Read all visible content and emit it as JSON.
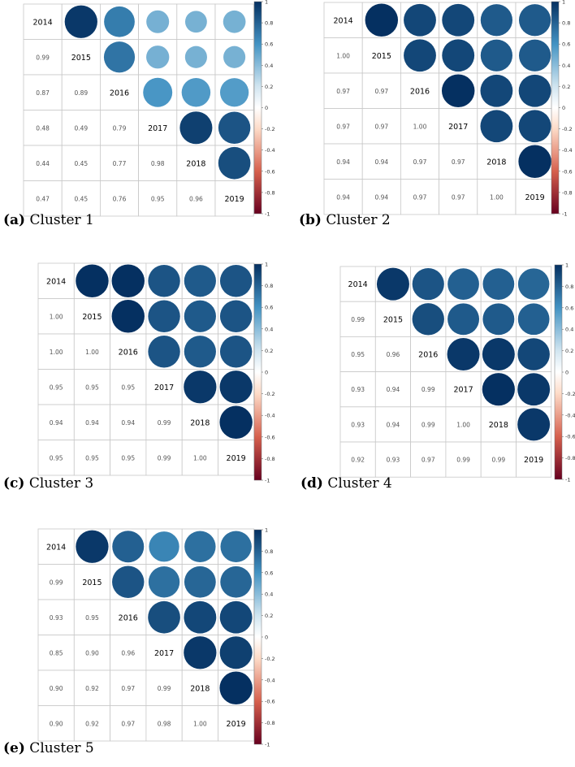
{
  "colorbar_ticks": [
    "1",
    "0.8",
    "0.6",
    "0.4",
    "0.2",
    "0",
    "-0.2",
    "-0.4",
    "-0.6",
    "-0.8",
    "-1"
  ],
  "chart_data": [
    {
      "type": "heatmap",
      "caption_label": "(a)",
      "caption_text": "Cluster 1",
      "labels": [
        "2014",
        "2015",
        "2016",
        "2017",
        "2018",
        "2019"
      ],
      "matrix": [
        [
          1.0,
          0.99,
          0.87,
          0.48,
          0.44,
          0.47
        ],
        [
          0.99,
          1.0,
          0.89,
          0.49,
          0.45,
          0.45
        ],
        [
          0.87,
          0.89,
          1.0,
          0.79,
          0.77,
          0.76
        ],
        [
          0.48,
          0.49,
          0.79,
          1.0,
          0.98,
          0.95
        ],
        [
          0.44,
          0.45,
          0.77,
          0.98,
          1.0,
          0.96
        ],
        [
          0.47,
          0.45,
          0.76,
          0.95,
          0.96,
          1.0
        ]
      ],
      "value_labels": [
        [
          "",
          "",
          "",
          "",
          "",
          ""
        ],
        [
          "0.99",
          "",
          "",
          "",
          "",
          ""
        ],
        [
          "0.87",
          "0.89",
          "",
          "",
          "",
          ""
        ],
        [
          "0.48",
          "0.49",
          "0.79",
          "",
          "",
          ""
        ],
        [
          "0.44",
          "0.45",
          "0.77",
          "0.98",
          "",
          ""
        ],
        [
          "0.47",
          "0.45",
          "0.76",
          "0.95",
          "0.96",
          ""
        ]
      ],
      "color_range": [
        -1,
        1
      ]
    },
    {
      "type": "heatmap",
      "caption_label": "(b)",
      "caption_text": "Cluster 2",
      "labels": [
        "2014",
        "2015",
        "2016",
        "2017",
        "2018",
        "2019"
      ],
      "matrix": [
        [
          1.0,
          1.0,
          0.97,
          0.97,
          0.94,
          0.94
        ],
        [
          1.0,
          1.0,
          0.97,
          0.97,
          0.94,
          0.94
        ],
        [
          0.97,
          0.97,
          1.0,
          1.0,
          0.97,
          0.97
        ],
        [
          0.97,
          0.97,
          1.0,
          1.0,
          0.97,
          0.97
        ],
        [
          0.94,
          0.94,
          0.97,
          0.97,
          1.0,
          1.0
        ],
        [
          0.94,
          0.94,
          0.97,
          0.97,
          1.0,
          1.0
        ]
      ],
      "value_labels": [
        [
          "",
          "",
          "",
          "",
          "",
          ""
        ],
        [
          "1.00",
          "",
          "",
          "",
          "",
          ""
        ],
        [
          "0.97",
          "0.97",
          "",
          "",
          "",
          ""
        ],
        [
          "0.97",
          "0.97",
          "1.00",
          "",
          "",
          ""
        ],
        [
          "0.94",
          "0.94",
          "0.97",
          "0.97",
          "",
          ""
        ],
        [
          "0.94",
          "0.94",
          "0.97",
          "0.97",
          "1.00",
          ""
        ]
      ],
      "color_range": [
        -1,
        1
      ]
    },
    {
      "type": "heatmap",
      "caption_label": "(c)",
      "caption_text": "Cluster 3",
      "labels": [
        "2014",
        "2015",
        "2016",
        "2017",
        "2018",
        "2019"
      ],
      "matrix": [
        [
          1.0,
          1.0,
          1.0,
          0.95,
          0.94,
          0.95
        ],
        [
          1.0,
          1.0,
          1.0,
          0.95,
          0.94,
          0.95
        ],
        [
          1.0,
          1.0,
          1.0,
          0.95,
          0.94,
          0.95
        ],
        [
          0.95,
          0.95,
          0.95,
          1.0,
          0.99,
          0.99
        ],
        [
          0.94,
          0.94,
          0.94,
          0.99,
          1.0,
          1.0
        ],
        [
          0.95,
          0.95,
          0.95,
          0.99,
          1.0,
          1.0
        ]
      ],
      "value_labels": [
        [
          "",
          "",
          "",
          "",
          "",
          ""
        ],
        [
          "1.00",
          "",
          "",
          "",
          "",
          ""
        ],
        [
          "1.00",
          "1.00",
          "",
          "",
          "",
          ""
        ],
        [
          "0.95",
          "0.95",
          "0.95",
          "",
          "",
          ""
        ],
        [
          "0.94",
          "0.94",
          "0.94",
          "0.99",
          "",
          ""
        ],
        [
          "0.95",
          "0.95",
          "0.95",
          "0.99",
          "1.00",
          ""
        ]
      ],
      "color_range": [
        -1,
        1
      ]
    },
    {
      "type": "heatmap",
      "caption_label": "(d)",
      "caption_text": "Cluster 4",
      "labels": [
        "2014",
        "2015",
        "2016",
        "2017",
        "2018",
        "2019"
      ],
      "matrix": [
        [
          1.0,
          0.99,
          0.95,
          0.93,
          0.93,
          0.92
        ],
        [
          0.99,
          1.0,
          0.96,
          0.94,
          0.94,
          0.93
        ],
        [
          0.95,
          0.96,
          1.0,
          0.99,
          0.99,
          0.97
        ],
        [
          0.93,
          0.94,
          0.99,
          1.0,
          1.0,
          0.99
        ],
        [
          0.93,
          0.94,
          0.99,
          1.0,
          1.0,
          0.99
        ],
        [
          0.92,
          0.93,
          0.97,
          0.99,
          0.99,
          1.0
        ]
      ],
      "value_labels": [
        [
          "",
          "",
          "",
          "",
          "",
          ""
        ],
        [
          "0.99",
          "",
          "",
          "",
          "",
          ""
        ],
        [
          "0.95",
          "0.96",
          "",
          "",
          "",
          ""
        ],
        [
          "0.93",
          "0.94",
          "0.99",
          "",
          "",
          ""
        ],
        [
          "0.93",
          "0.94",
          "0.99",
          "1.00",
          "",
          ""
        ],
        [
          "0.92",
          "0.93",
          "0.97",
          "0.99",
          "0.99",
          ""
        ]
      ],
      "color_range": [
        -1,
        1
      ]
    },
    {
      "type": "heatmap",
      "caption_label": "(e)",
      "caption_text": "Cluster 5",
      "labels": [
        "2014",
        "2015",
        "2016",
        "2017",
        "2018",
        "2019"
      ],
      "matrix": [
        [
          1.0,
          0.99,
          0.93,
          0.85,
          0.9,
          0.9
        ],
        [
          0.99,
          1.0,
          0.95,
          0.9,
          0.92,
          0.92
        ],
        [
          0.93,
          0.95,
          1.0,
          0.96,
          0.97,
          0.97
        ],
        [
          0.85,
          0.9,
          0.96,
          1.0,
          0.99,
          0.98
        ],
        [
          0.9,
          0.92,
          0.97,
          0.99,
          1.0,
          1.0
        ],
        [
          0.9,
          0.92,
          0.97,
          0.98,
          1.0,
          1.0
        ]
      ],
      "value_labels": [
        [
          "",
          "",
          "",
          "",
          "",
          ""
        ],
        [
          "0.99",
          "",
          "",
          "",
          "",
          ""
        ],
        [
          "0.93",
          "0.95",
          "",
          "",
          "",
          ""
        ],
        [
          "0.85",
          "0.90",
          "0.96",
          "",
          "",
          ""
        ],
        [
          "0.90",
          "0.92",
          "0.97",
          "0.99",
          "",
          ""
        ],
        [
          "0.90",
          "0.92",
          "0.97",
          "0.98",
          "1.00",
          ""
        ]
      ],
      "color_range": [
        -1,
        1
      ]
    }
  ]
}
